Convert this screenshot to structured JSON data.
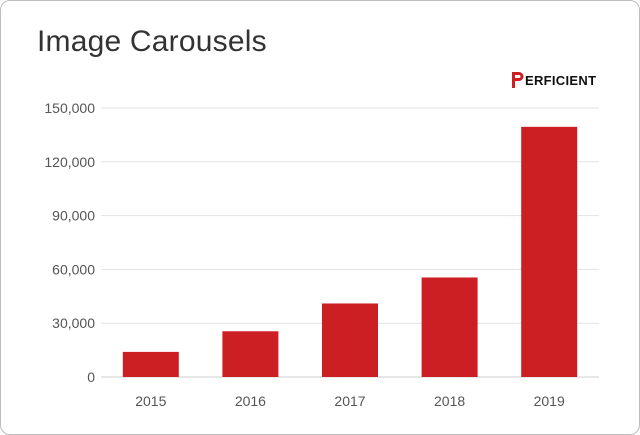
{
  "title": "Image Carousels",
  "logo": {
    "text": "ERFICIENT",
    "brand": "PERFICIENT",
    "color": "#cc1f24"
  },
  "chart_data": {
    "type": "bar",
    "categories": [
      "2015",
      "2016",
      "2017",
      "2018",
      "2019"
    ],
    "values": [
      14000,
      25500,
      41000,
      55500,
      139500
    ],
    "xlabel": "",
    "ylabel": "",
    "ylim": [
      0,
      150000
    ],
    "yticks": [
      0,
      30000,
      60000,
      90000,
      120000,
      150000
    ],
    "ytick_labels": [
      "0",
      "30,000",
      "60,000",
      "90,000",
      "120,000",
      "150,000"
    ],
    "grid": true,
    "legend": "none",
    "bar_color": "#cc1f24"
  }
}
